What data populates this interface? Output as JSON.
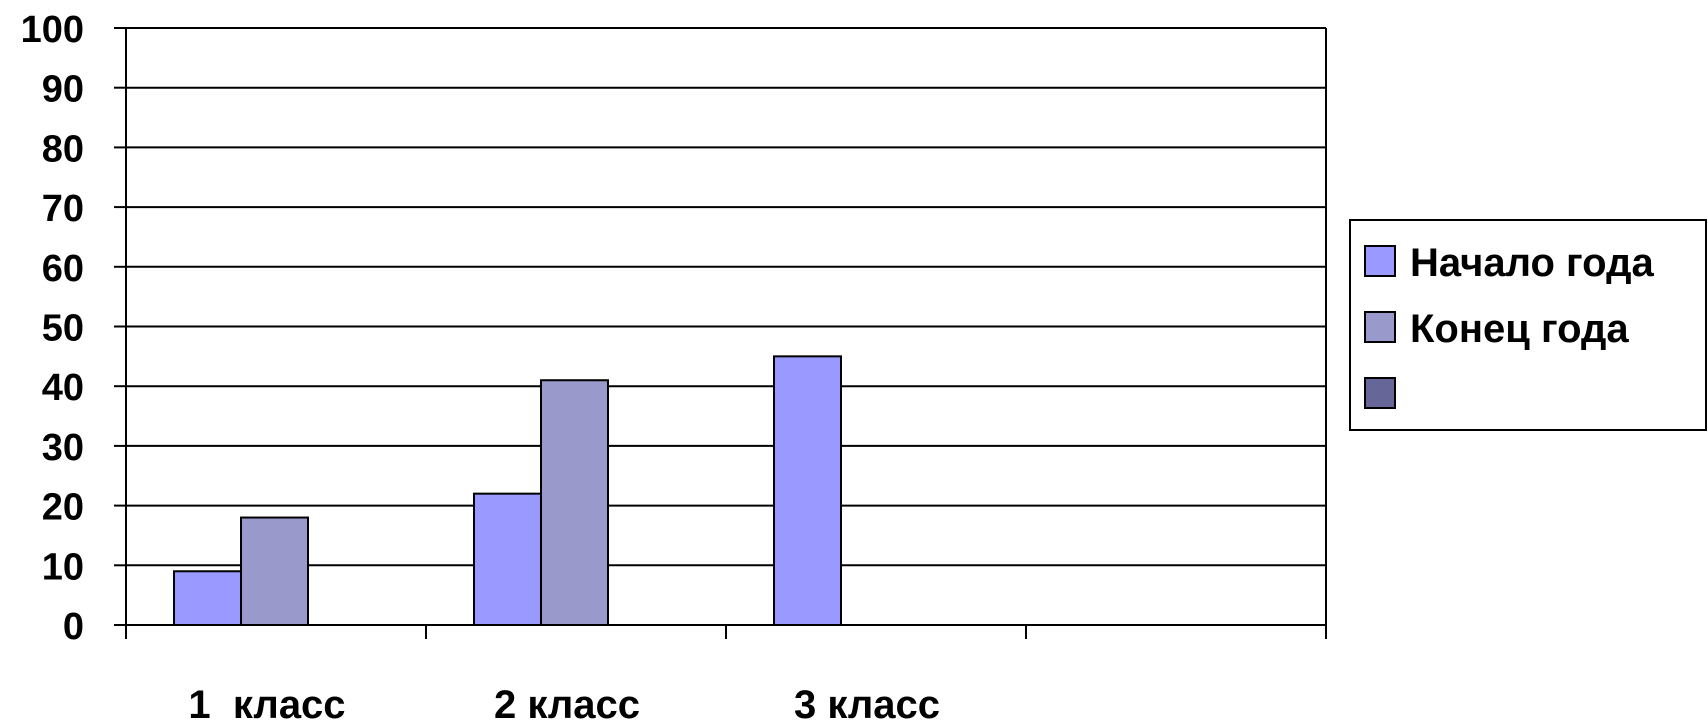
{
  "chart_data": {
    "type": "bar",
    "categories": [
      "1  класс",
      "2 класс",
      "3 класс",
      ""
    ],
    "series": [
      {
        "name": "Начало года",
        "values": [
          9,
          22,
          45,
          null
        ],
        "color": "#9999FF"
      },
      {
        "name": "Конец года",
        "values": [
          18,
          41,
          null,
          null
        ],
        "color": "#9999CC"
      },
      {
        "name": "",
        "values": [
          null,
          null,
          null,
          null
        ],
        "color": "#666699"
      }
    ],
    "yticks": [
      "0",
      "10",
      "20",
      "30",
      "40",
      "50",
      "60",
      "70",
      "80",
      "90",
      "100"
    ],
    "ylim": [
      0,
      100
    ],
    "grid": true,
    "legend_position": "right"
  }
}
